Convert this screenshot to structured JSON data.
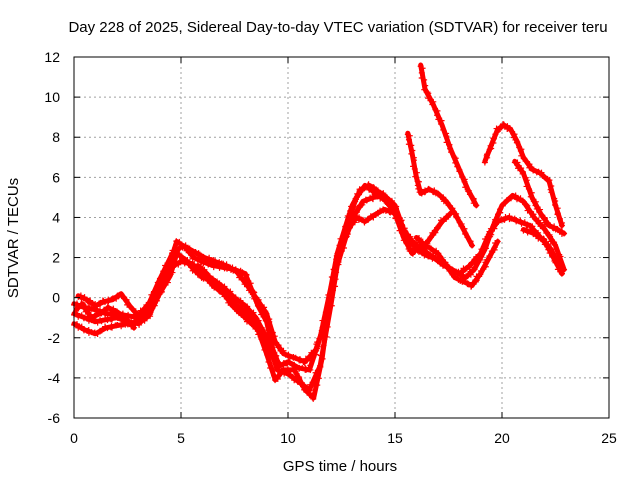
{
  "chart_data": {
    "type": "scatter",
    "title": "Day 228 of 2025, Sidereal Day-to-day VTEC variation (SDTVAR) for receiver teru",
    "xlabel": "GPS time / hours",
    "ylabel": "SDTVAR / TECUs",
    "xlim": [
      0,
      25
    ],
    "ylim": [
      -6,
      12
    ],
    "xticks": [
      0,
      5,
      10,
      15,
      20,
      25
    ],
    "yticks": [
      -6,
      -4,
      -2,
      0,
      2,
      4,
      6,
      8,
      10,
      12
    ],
    "grid": true,
    "marker": "plus",
    "series_color": "#ff0000",
    "series": [
      {
        "name": "trace-1",
        "points": [
          [
            0,
            -0.3
          ],
          [
            0.5,
            -0.5
          ],
          [
            1,
            -0.6
          ],
          [
            1.5,
            -0.8
          ],
          [
            2,
            -0.8
          ],
          [
            2.5,
            -0.9
          ],
          [
            3,
            -1.0
          ],
          [
            3.5,
            -0.6
          ],
          [
            4,
            0.4
          ],
          [
            4.5,
            1.8
          ],
          [
            4.8,
            2.8
          ],
          [
            5.2,
            2.5
          ],
          [
            5.6,
            2.0
          ],
          [
            6,
            1.8
          ],
          [
            6.5,
            1.6
          ],
          [
            7,
            1.5
          ],
          [
            7.5,
            1.4
          ],
          [
            8,
            1.2
          ],
          [
            8.3,
            0.4
          ],
          [
            8.6,
            -0.4
          ],
          [
            9,
            -1.2
          ],
          [
            9.3,
            -2.6
          ],
          [
            9.6,
            -3.4
          ],
          [
            10,
            -3.2
          ],
          [
            10.5,
            -3.5
          ],
          [
            11,
            -3.6
          ],
          [
            11.5,
            -2.0
          ],
          [
            12,
            0.5
          ],
          [
            12.3,
            2.2
          ],
          [
            12.7,
            3.6
          ],
          [
            13,
            4.6
          ],
          [
            13.4,
            5.4
          ],
          [
            13.8,
            5.6
          ],
          [
            14.2,
            5.3
          ],
          [
            14.6,
            5.0
          ],
          [
            15,
            4.6
          ],
          [
            15.4,
            3.4
          ],
          [
            15.8,
            2.8
          ],
          [
            16.3,
            2.4
          ],
          [
            16.8,
            2.0
          ],
          [
            17.3,
            1.6
          ],
          [
            17.8,
            1.3
          ],
          [
            18.3,
            1.0
          ],
          [
            18.7,
            1.4
          ],
          [
            19.2,
            2.4
          ],
          [
            19.6,
            3.6
          ],
          [
            20,
            4.6
          ],
          [
            20.5,
            5.1
          ],
          [
            21,
            4.8
          ],
          [
            21.5,
            4.0
          ],
          [
            22,
            3.4
          ],
          [
            22.5,
            2.6
          ],
          [
            22.9,
            1.4
          ]
        ]
      },
      {
        "name": "trace-2",
        "points": [
          [
            0,
            -0.8
          ],
          [
            0.5,
            -1.0
          ],
          [
            1,
            -1.2
          ],
          [
            1.5,
            -1.1
          ],
          [
            2,
            -1.0
          ],
          [
            2.5,
            -1.2
          ],
          [
            3,
            -1.3
          ],
          [
            3.5,
            -0.9
          ],
          [
            4,
            0.2
          ],
          [
            4.5,
            1.1
          ],
          [
            4.8,
            2.2
          ],
          [
            5.2,
            1.9
          ],
          [
            5.6,
            1.4
          ],
          [
            6,
            1.0
          ],
          [
            6.5,
            0.9
          ],
          [
            7,
            0.5
          ],
          [
            7.5,
            0.0
          ],
          [
            8,
            -0.4
          ],
          [
            8.5,
            -1.0
          ],
          [
            9,
            -2.0
          ],
          [
            9.5,
            -3.6
          ],
          [
            10,
            -3.8
          ],
          [
            10.5,
            -4.2
          ],
          [
            11,
            -4.6
          ],
          [
            11.5,
            -3.4
          ],
          [
            12,
            -0.4
          ],
          [
            12.3,
            1.6
          ],
          [
            12.7,
            3.0
          ],
          [
            13.1,
            4.1
          ],
          [
            13.5,
            4.8
          ],
          [
            14,
            5.0
          ],
          [
            14.4,
            5.2
          ],
          [
            14.8,
            4.5
          ],
          [
            15.2,
            3.8
          ],
          [
            15.6,
            3.0
          ],
          [
            16,
            2.4
          ],
          [
            16.5,
            2.1
          ],
          [
            17,
            1.9
          ],
          [
            17.5,
            1.5
          ],
          [
            18,
            1.2
          ],
          [
            18.5,
            1.6
          ],
          [
            19,
            2.2
          ],
          [
            19.4,
            3.2
          ],
          [
            19.8,
            3.8
          ],
          [
            20.3,
            4.0
          ],
          [
            20.8,
            3.8
          ],
          [
            21.3,
            3.6
          ],
          [
            21.8,
            3.0
          ],
          [
            22.3,
            2.4
          ],
          [
            22.8,
            1.2
          ]
        ]
      },
      {
        "name": "trace-3",
        "points": [
          [
            0,
            -1.3
          ],
          [
            0.5,
            -1.6
          ],
          [
            1,
            -1.8
          ],
          [
            1.5,
            -1.5
          ],
          [
            2,
            -1.4
          ],
          [
            2.5,
            -1.3
          ],
          [
            3,
            -1.2
          ],
          [
            3.5,
            -0.8
          ],
          [
            4,
            0.5
          ],
          [
            4.5,
            1.5
          ],
          [
            5,
            1.8
          ],
          [
            5.5,
            1.7
          ],
          [
            6,
            1.2
          ],
          [
            6.5,
            0.6
          ],
          [
            7,
            0.2
          ],
          [
            7.5,
            -0.3
          ],
          [
            8,
            -0.7
          ],
          [
            8.5,
            -1.3
          ],
          [
            9,
            -2.8
          ],
          [
            9.4,
            -4.1
          ],
          [
            9.8,
            -3.6
          ],
          [
            10.3,
            -3.6
          ],
          [
            10.8,
            -4.6
          ],
          [
            11.2,
            -5.0
          ],
          [
            11.6,
            -3.0
          ],
          [
            12,
            0.2
          ],
          [
            12.4,
            2.4
          ],
          [
            12.8,
            3.4
          ],
          [
            13.2,
            4.0
          ],
          [
            13.6,
            3.8
          ],
          [
            14,
            4.1
          ],
          [
            14.5,
            4.4
          ],
          [
            15,
            4.2
          ],
          [
            15.4,
            3.0
          ],
          [
            15.8,
            2.2
          ],
          [
            16.2,
            2.6
          ],
          [
            16.6,
            2.5
          ],
          [
            17,
            2.2
          ],
          [
            17.4,
            1.6
          ],
          [
            17.8,
            1.0
          ],
          [
            18.2,
            0.8
          ],
          [
            18.6,
            0.6
          ],
          [
            19,
            1.2
          ],
          [
            19.4,
            2.0
          ],
          [
            19.8,
            2.8
          ]
        ]
      },
      {
        "name": "trace-4",
        "points": [
          [
            0.2,
            0.1
          ],
          [
            0.6,
            -0.1
          ],
          [
            1,
            -0.4
          ],
          [
            1.4,
            -0.2
          ],
          [
            1.8,
            -0.1
          ],
          [
            2.2,
            0.2
          ],
          [
            2.6,
            -0.4
          ],
          [
            3,
            -0.9
          ],
          [
            3.5,
            -0.3
          ],
          [
            4,
            0.9
          ],
          [
            4.6,
            2.2
          ],
          [
            5.1,
            2.6
          ],
          [
            5.6,
            2.3
          ],
          [
            6.1,
            2.0
          ],
          [
            6.6,
            1.8
          ],
          [
            7.1,
            1.6
          ],
          [
            7.6,
            1.3
          ],
          [
            8.1,
            0.6
          ],
          [
            8.5,
            0.0
          ],
          [
            9,
            -0.8
          ],
          [
            9.4,
            -2.2
          ],
          [
            9.8,
            -2.8
          ],
          [
            10.3,
            -3.0
          ],
          [
            10.8,
            -3.2
          ],
          [
            11.3,
            -2.6
          ],
          [
            11.8,
            -1.0
          ],
          [
            12.3,
            1.8
          ],
          [
            12.8,
            3.8
          ],
          [
            13.2,
            5.0
          ],
          [
            13.6,
            5.6
          ],
          [
            14.1,
            5.2
          ],
          [
            14.6,
            4.8
          ],
          [
            15.1,
            4.2
          ],
          [
            15.5,
            3.0
          ],
          [
            15.9,
            2.6
          ]
        ]
      },
      {
        "name": "trace-5",
        "points": [
          [
            16.2,
            11.6
          ],
          [
            16.4,
            10.4
          ],
          [
            16.8,
            9.6
          ],
          [
            17.2,
            8.6
          ],
          [
            17.6,
            7.4
          ],
          [
            18,
            6.4
          ],
          [
            18.4,
            5.4
          ],
          [
            18.8,
            4.6
          ]
        ]
      },
      {
        "name": "trace-6",
        "points": [
          [
            15.6,
            8.2
          ],
          [
            15.8,
            7.2
          ],
          [
            16,
            6.0
          ],
          [
            16.2,
            5.2
          ],
          [
            16.6,
            5.4
          ],
          [
            17,
            5.2
          ],
          [
            17.4,
            4.8
          ],
          [
            17.8,
            4.2
          ],
          [
            18.2,
            3.4
          ],
          [
            18.6,
            2.6
          ]
        ]
      },
      {
        "name": "trace-7",
        "points": [
          [
            19.2,
            6.8
          ],
          [
            19.5,
            7.6
          ],
          [
            19.8,
            8.4
          ],
          [
            20.1,
            8.6
          ],
          [
            20.4,
            8.4
          ],
          [
            20.7,
            7.8
          ],
          [
            21,
            7.0
          ],
          [
            21.4,
            6.4
          ],
          [
            21.8,
            6.2
          ],
          [
            22.2,
            5.8
          ],
          [
            22.5,
            4.6
          ],
          [
            22.8,
            3.6
          ]
        ]
      },
      {
        "name": "trace-8",
        "points": [
          [
            20.6,
            6.8
          ],
          [
            21,
            6.2
          ],
          [
            21.4,
            5.0
          ],
          [
            21.8,
            4.2
          ],
          [
            22.2,
            3.6
          ],
          [
            22.6,
            3.4
          ],
          [
            22.9,
            3.2
          ]
        ]
      },
      {
        "name": "trace-9",
        "points": [
          [
            21,
            3.4
          ],
          [
            21.5,
            3.2
          ],
          [
            22,
            2.8
          ],
          [
            22.4,
            2.0
          ],
          [
            22.8,
            1.2
          ]
        ]
      },
      {
        "name": "trace-10",
        "points": [
          [
            16,
            3.0
          ],
          [
            16.4,
            2.6
          ],
          [
            16.8,
            3.2
          ],
          [
            17.2,
            3.8
          ],
          [
            17.6,
            4.2
          ]
        ]
      },
      {
        "name": "trace-11",
        "points": [
          [
            5.8,
            1.6
          ],
          [
            6.2,
            1.2
          ],
          [
            6.6,
            0.6
          ],
          [
            7,
            0.2
          ],
          [
            7.4,
            -0.4
          ],
          [
            7.8,
            -0.8
          ],
          [
            8.2,
            -1.2
          ],
          [
            8.6,
            -1.6
          ],
          [
            9,
            -2.4
          ],
          [
            9.3,
            -3.0
          ]
        ]
      },
      {
        "name": "trace-12",
        "points": [
          [
            0.1,
            -0.6
          ],
          [
            0.4,
            -0.3
          ],
          [
            0.8,
            -1.0
          ],
          [
            1.2,
            -0.8
          ],
          [
            1.6,
            -0.5
          ],
          [
            2,
            -0.7
          ],
          [
            2.4,
            -1.0
          ],
          [
            2.8,
            -1.5
          ]
        ]
      }
    ]
  }
}
